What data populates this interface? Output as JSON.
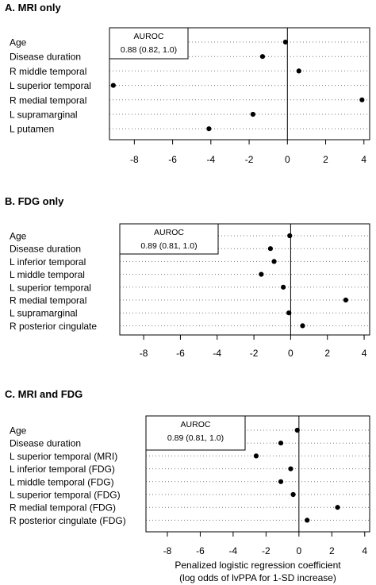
{
  "chart_data": [
    {
      "type": "scatter",
      "title": "A. MRI only",
      "categories": [
        "Age",
        "Disease duration",
        "R middle temporal",
        "L superior temporal",
        "R medial temporal",
        "L supramarginal",
        "L putamen"
      ],
      "values": [
        -0.1,
        -1.3,
        0.6,
        -9.1,
        3.9,
        -1.8,
        -4.1
      ],
      "xlim": [
        -9.3,
        4.3
      ],
      "xticks": [
        -8,
        -6,
        -4,
        -2,
        0,
        2,
        4
      ],
      "reference_line": 0,
      "grid": "dotted horizontal",
      "annotation": {
        "label": "AUROC",
        "value": "0.88 (0.82, 1.0)"
      },
      "xlabel": []
    },
    {
      "type": "scatter",
      "title": "B. FDG only",
      "categories": [
        "Age",
        "Disease duration",
        "L inferior temporal",
        "L middle temporal",
        "L superior temporal",
        "R medial temporal",
        "L supramarginal",
        "R posterior cingulate"
      ],
      "values": [
        -0.05,
        -1.1,
        -0.9,
        -1.6,
        -0.4,
        3.0,
        -0.1,
        0.65
      ],
      "xlim": [
        -9.3,
        4.3
      ],
      "xticks": [
        -8,
        -6,
        -4,
        -2,
        0,
        2,
        4
      ],
      "reference_line": 0,
      "grid": "dotted horizontal",
      "annotation": {
        "label": "AUROC",
        "value": "0.89 (0.81, 1.0)"
      },
      "xlabel": []
    },
    {
      "type": "scatter",
      "title": "C. MRI and FDG",
      "categories": [
        "Age",
        "Disease duration",
        "L superior temporal (MRI)",
        "L inferior temporal (FDG)",
        "L middle temporal (FDG)",
        "L superior temporal (FDG)",
        "R medial temporal (FDG)",
        "R posterior cingulate (FDG)"
      ],
      "values": [
        -0.1,
        -1.1,
        -2.6,
        -0.5,
        -1.1,
        -0.35,
        2.35,
        0.5
      ],
      "xlim": [
        -9.3,
        4.3
      ],
      "xticks": [
        -8,
        -6,
        -4,
        -2,
        0,
        2,
        4
      ],
      "reference_line": 0,
      "grid": "dotted horizontal",
      "annotation": {
        "label": "AUROC",
        "value": "0.89 (0.81, 1.0)"
      },
      "xlabel": [
        "Penalized logistic regression coefficient",
        "(log odds of lvPPA for 1-SD increase)"
      ]
    }
  ]
}
